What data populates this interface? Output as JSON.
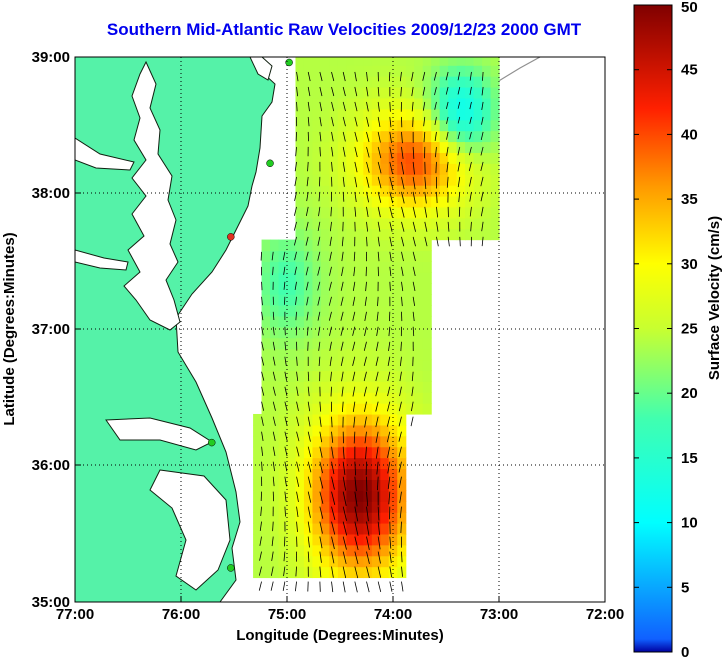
{
  "map": {
    "title": "Southern Mid-Atlantic Raw Velocities 2009/12/23 2000 GMT",
    "x_axis_label": "Longitude (Degrees:Minutes)",
    "y_axis_label": "Latitude (Degrees:Minutes)",
    "x_ticks": [
      "77:00",
      "76:00",
      "75:00",
      "74:00",
      "73:00",
      "72:00"
    ],
    "y_ticks": [
      "39:00",
      "38:00",
      "37:00",
      "36:00",
      "35:00"
    ],
    "lon_range": [
      -77,
      -72
    ],
    "lat_range": [
      35,
      39
    ],
    "grid": true,
    "land_color": "#55f2a8",
    "station_color_active": "#22cc22",
    "station_color_inactive": "#e03020",
    "stations": [
      {
        "lon": -74.98,
        "lat": 38.96,
        "status": "active"
      },
      {
        "lon": -75.16,
        "lat": 38.22,
        "status": "active"
      },
      {
        "lon": -75.53,
        "lat": 37.68,
        "status": "inactive"
      },
      {
        "lon": -75.71,
        "lat": 36.17,
        "status": "active"
      },
      {
        "lon": -75.53,
        "lat": 35.25,
        "status": "active"
      }
    ]
  },
  "colorbar": {
    "label": "Surface Velocity (cm/s)",
    "ticks": [
      "0",
      "5",
      "10",
      "15",
      "20",
      "25",
      "30",
      "35",
      "40",
      "45",
      "50"
    ],
    "range": [
      0,
      50
    ],
    "colormap": "jet"
  }
}
